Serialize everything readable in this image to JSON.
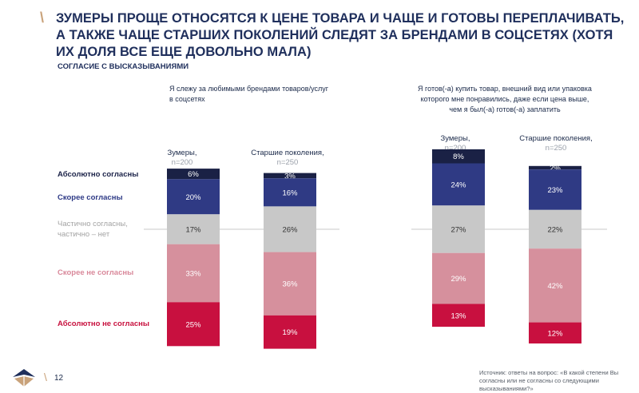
{
  "header": {
    "title": "ЗУМЕРЫ ПРОЩЕ ОТНОСЯТСЯ К ЦЕНЕ ТОВАРА И ЧАЩЕ И ГОТОВЫ ПЕРЕПЛАЧИВАТЬ, А ТАКЖЕ ЧАЩЕ СТАРШИХ ПОКОЛЕНИЙ СЛЕДЯТ ЗА БРЕНДАМИ В СОЦСЕТЯХ (ХОТЯ ИХ ДОЛЯ ВСЕ ЕЩЕ ДОВОЛЬНО МАЛА)",
    "subtitle": "СОГЛАСИЕ С ВЫСКАЗЫВАНИЯМИ"
  },
  "row_labels": [
    {
      "text": "Абсолютно согласны",
      "color": "#1b2248"
    },
    {
      "text": "Скорее согласны",
      "color": "#2e3a86"
    },
    {
      "text": "Частично согласны, частично – нет",
      "color": "#a3a3a3"
    },
    {
      "text": "Скорее не согласны",
      "color": "#d9899b"
    },
    {
      "text": "Абсолютно не согласны",
      "color": "#c8123f"
    }
  ],
  "colors": {
    "abs_agree": "#1a2145",
    "agree": "#2f3a84",
    "neutral": "#c8c8c8",
    "disagree": "#d6909d",
    "abs_disagree": "#c8103f"
  },
  "chart_data": [
    {
      "type": "bar",
      "stacked": true,
      "title": "Я слежу за любимыми брендами товаров/услуг в соцсетях",
      "categories": [
        {
          "name": "Зумеры,",
          "n": "n=200"
        },
        {
          "name": "Старшие поколения,",
          "n": "n=250"
        }
      ],
      "series": [
        {
          "name": "Абсолютно согласны",
          "values": [
            6,
            3
          ],
          "labels": [
            "6%",
            "3%"
          ]
        },
        {
          "name": "Скорее согласны",
          "values": [
            20,
            16
          ],
          "labels": [
            "20%",
            "16%"
          ]
        },
        {
          "name": "Частично согласны, частично – нет",
          "values": [
            17,
            26
          ],
          "labels": [
            "17%",
            "26%"
          ]
        },
        {
          "name": "Скорее не согласны",
          "values": [
            33,
            36
          ],
          "labels": [
            "33%",
            "36%"
          ]
        },
        {
          "name": "Абсолютно не согласны",
          "values": [
            25,
            19
          ],
          "labels": [
            "25%",
            "19%"
          ]
        }
      ]
    },
    {
      "type": "bar",
      "stacked": true,
      "title": "Я готов(-а) купить товар, внешний вид или упаковка которого мне понравились, даже если цена выше, чем я был(-а) готов(-а) заплатить",
      "categories": [
        {
          "name": "Зумеры,",
          "n": "n=200"
        },
        {
          "name": "Старшие поколения,",
          "n": "n=250"
        }
      ],
      "series": [
        {
          "name": "Абсолютно согласны",
          "values": [
            8,
            2
          ],
          "labels": [
            "8%",
            "2%"
          ]
        },
        {
          "name": "Скорее согласны",
          "values": [
            24,
            23
          ],
          "labels": [
            "24%",
            "23%"
          ]
        },
        {
          "name": "Частично согласны, частично – нет",
          "values": [
            27,
            22
          ],
          "labels": [
            "27%",
            "22%"
          ]
        },
        {
          "name": "Скорее не согласны",
          "values": [
            29,
            42
          ],
          "labels": [
            "29%",
            "42%"
          ]
        },
        {
          "name": "Абсолютно не согласны",
          "values": [
            13,
            12
          ],
          "labels": [
            "13%",
            "12%"
          ]
        }
      ]
    }
  ],
  "footer": {
    "page_number": "12",
    "source": "Источник: ответы на вопрос: «В какой степени Вы согласны или не согласны со следующими высказываниями?»"
  }
}
